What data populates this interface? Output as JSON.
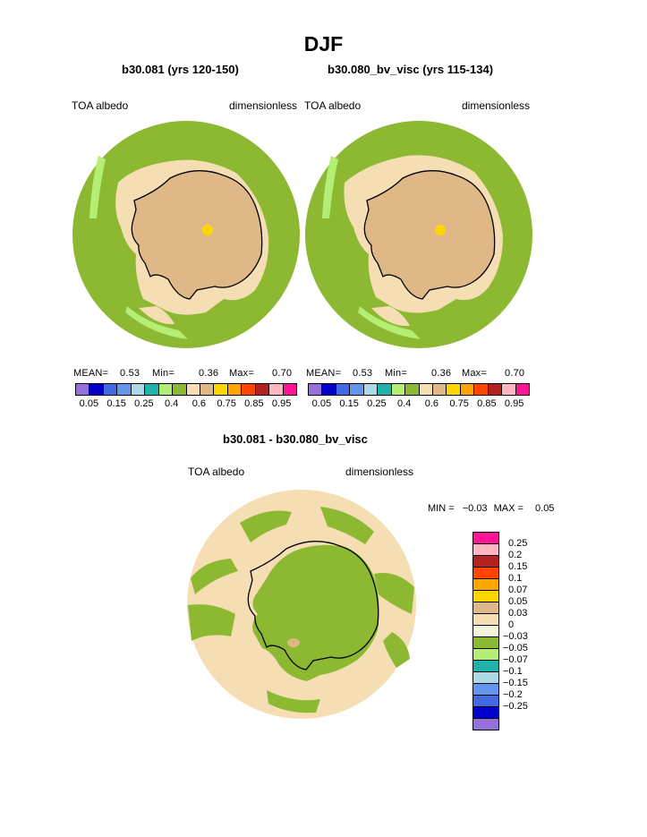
{
  "title": "DJF",
  "panels": [
    {
      "subtitle": "b30.081 (yrs 120-150)",
      "left_label": "TOA albedo",
      "right_label": "dimensionless",
      "stats": {
        "mean_label": "MEAN=",
        "mean": "0.53",
        "min_label": "Min=",
        "min": "0.36",
        "max_label": "Max=",
        "max": "0.70"
      }
    },
    {
      "subtitle": "b30.080_bv_visc (yrs 115-134)",
      "left_label": "TOA albedo",
      "right_label": "dimensionless",
      "stats": {
        "mean_label": "MEAN=",
        "mean": "0.53",
        "min_label": "Min=",
        "min": "0.36",
        "max_label": "Max=",
        "max": "0.70"
      }
    }
  ],
  "colorbar_top": {
    "colors": [
      "#9370db",
      "#0000cd",
      "#4169e1",
      "#6495ed",
      "#add8e6",
      "#20b2aa",
      "#b4ee74",
      "#8cb832",
      "#f5deb3",
      "#deb887",
      "#ffd700",
      "#ffa500",
      "#ff4500",
      "#b22222",
      "#ffb6c1",
      "#ff1493"
    ],
    "ticks": [
      "0.05",
      "0.15",
      "0.25",
      "0.4",
      "0.6",
      "0.75",
      "0.85",
      "0.95"
    ]
  },
  "difference": {
    "title": "b30.081 - b30.080_bv_visc",
    "left_label": "TOA albedo",
    "right_label": "dimensionless",
    "min_label": "MIN =",
    "min": "−0.03",
    "max_label": "MAX =",
    "max": "0.05",
    "colorbar": {
      "colors": [
        "#ff1493",
        "#ffb6c1",
        "#b22222",
        "#ff4500",
        "#ffa500",
        "#ffd700",
        "#deb887",
        "#f5deb3",
        "#f5f5dc",
        "#8cb832",
        "#b4ee74",
        "#20b2aa",
        "#add8e6",
        "#6495ed",
        "#4169e1",
        "#0000cd",
        "#9370db"
      ],
      "ticks": [
        "0.25",
        "0.2",
        "0.15",
        "0.1",
        "0.07",
        "0.05",
        "0.03",
        "0",
        "−0.03",
        "−0.05",
        "−0.07",
        "−0.1",
        "−0.15",
        "−0.2",
        "−0.25"
      ]
    }
  }
}
